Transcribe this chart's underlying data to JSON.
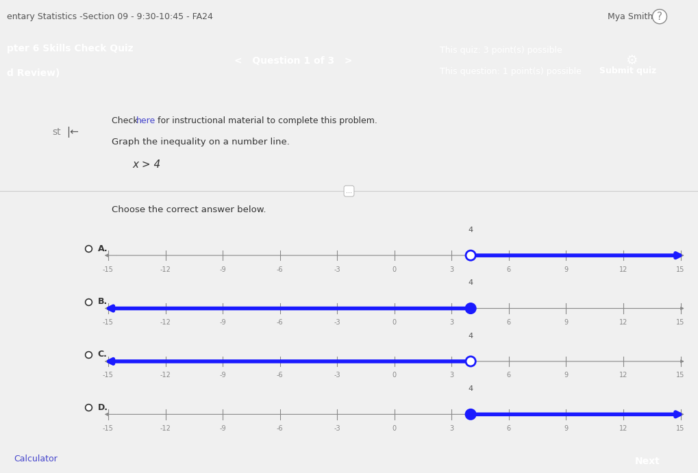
{
  "bg_color": "#f0f0f0",
  "header_color": "#c0395a",
  "white_area": "#ffffff",
  "header_text_color": "#ffffff",
  "quiz_points": "This quiz: 3 point(s) possible",
  "question_points": "This question: 1 point(s) possible",
  "submit_btn": "Submit quiz",
  "top_bar_text": "entary Statistics -Section 09 - 9:30-10:45 - FA24",
  "top_right_text": "Mya Smith",
  "instruction_text": "Check here for instructional material to complete this problem.",
  "graph_instruction": "Graph the inequality on a number line.",
  "inequality": "x > 4",
  "choose_text": "Choose the correct answer below.",
  "calculator_text": "Calculator",
  "xmin": -15,
  "xmax": 15,
  "tick_positions": [
    -15,
    -12,
    -9,
    -6,
    -3,
    0,
    3,
    6,
    9,
    12,
    15
  ],
  "critical_value": 4,
  "line_color": "#1a1aff",
  "axis_color": "#888888",
  "options": [
    {
      "label": "A.",
      "open_circle": true,
      "arrow_right": true
    },
    {
      "label": "B.",
      "open_circle": false,
      "arrow_right": false
    },
    {
      "label": "C.",
      "open_circle": true,
      "arrow_right": false
    },
    {
      "label": "D.",
      "open_circle": false,
      "arrow_right": true
    }
  ]
}
